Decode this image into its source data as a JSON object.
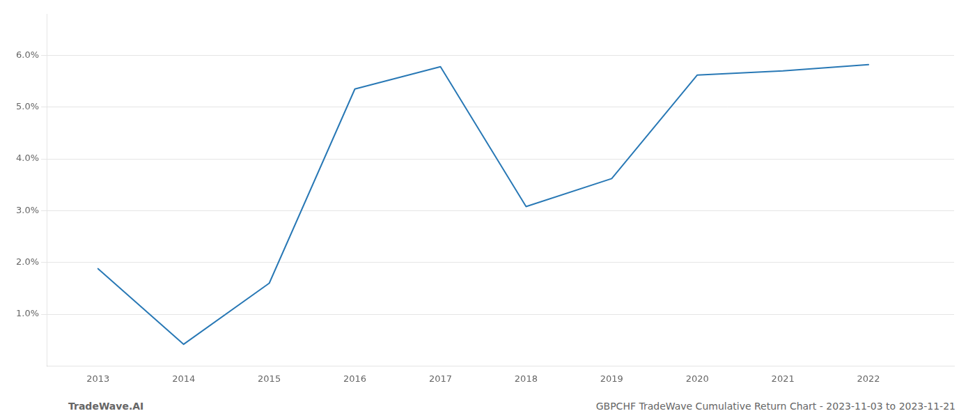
{
  "chart_data": {
    "type": "line",
    "x": [
      2013,
      2014,
      2015,
      2016,
      2017,
      2018,
      2019,
      2020,
      2021,
      2022
    ],
    "values": [
      1.88,
      0.42,
      1.6,
      5.35,
      5.78,
      3.08,
      3.62,
      5.62,
      5.7,
      5.82
    ],
    "color": "#2878b5",
    "xlim": [
      2012.4,
      2023.0
    ],
    "xticks": [
      2013,
      2014,
      2015,
      2016,
      2017,
      2018,
      2019,
      2020,
      2021,
      2022
    ],
    "ylim": [
      0.0,
      6.8
    ],
    "yticks": [
      {
        "value": 1.0,
        "label": "1.0%"
      },
      {
        "value": 2.0,
        "label": "2.0%"
      },
      {
        "value": 3.0,
        "label": "3.0%"
      },
      {
        "value": 4.0,
        "label": "4.0%"
      },
      {
        "value": 5.0,
        "label": "5.0%"
      },
      {
        "value": 6.0,
        "label": "6.0%"
      }
    ],
    "grid": "y",
    "annotations": [
      "TradeWave.AI",
      "GBPCHF TradeWave Cumulative Return Chart - 2023-11-03 to 2023-11-21"
    ]
  }
}
